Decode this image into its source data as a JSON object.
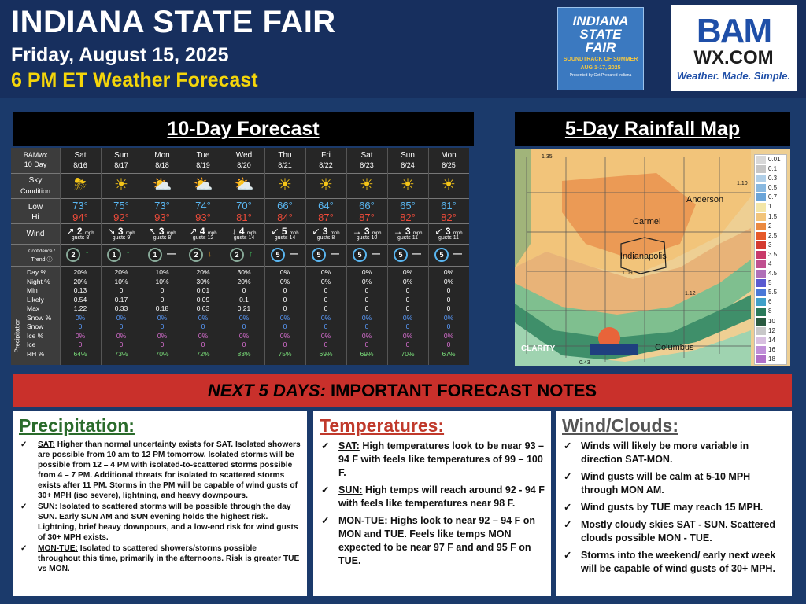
{
  "header": {
    "title": "INDIANA STATE FAIR",
    "date": "Friday, August 15, 2025",
    "subtitle": "6 PM ET Weather Forecast"
  },
  "fair_logo": {
    "line1": "INDIANA",
    "line2": "STATE",
    "line3": "FAIR",
    "tagline": "SOUNDTRACK OF SUMMER",
    "dates": "AUG 1-17, 2025",
    "presented": "Presented by Get Prepared Indiana"
  },
  "bam_logo": {
    "word1": "BAM",
    "word2": "WX.COM",
    "tag_a": "Weather.",
    "tag_b": "Made.",
    "tag_c": "Simple."
  },
  "forecast": {
    "title": "10-Day Forecast",
    "corner_label_1": "BAMwx",
    "corner_label_2": "10 Day",
    "row_labels": {
      "sky": "Sky",
      "sky2": "Condition",
      "low": "Low",
      "hi": "Hi",
      "wind": "Wind",
      "conf": "Confidence /",
      "trend": "Trend ⓘ",
      "precip": "Precipitation"
    },
    "precip_row_labels": [
      "Day %",
      "Night %",
      "Min",
      "Likely",
      "Max",
      "Snow %",
      "Snow",
      "Ice %",
      "Ice",
      "RH %"
    ],
    "days": [
      {
        "day": "Sat",
        "date": "8/16",
        "icon": "thunderstorm-icon",
        "low": "73°",
        "hi": "94°",
        "wind_dir": "↗",
        "wind": "2",
        "gusts": "gusts 8",
        "conf": "2",
        "trend": "↑",
        "trend_color": "#3fbf5c",
        "precip": [
          "20%",
          "20%",
          "0.13",
          "0.54",
          "1.22",
          "0%",
          "0",
          "0%",
          "0",
          "64%"
        ]
      },
      {
        "day": "Sun",
        "date": "8/17",
        "icon": "sunny-icon",
        "low": "75°",
        "hi": "92°",
        "wind_dir": "↘",
        "wind": "3",
        "gusts": "gusts 9",
        "conf": "1",
        "trend": "↑",
        "trend_color": "#3fbf5c",
        "precip": [
          "20%",
          "10%",
          "0",
          "0.17",
          "0.33",
          "0%",
          "0",
          "0%",
          "0",
          "73%"
        ]
      },
      {
        "day": "Mon",
        "date": "8/18",
        "icon": "partly-sunny-icon",
        "low": "73°",
        "hi": "93°",
        "wind_dir": "↖",
        "wind": "3",
        "gusts": "gusts 8",
        "conf": "1",
        "trend": "—",
        "trend_color": "#ffffff",
        "precip": [
          "10%",
          "10%",
          "0",
          "0",
          "0.18",
          "0%",
          "0",
          "0%",
          "0",
          "70%"
        ]
      },
      {
        "day": "Tue",
        "date": "8/19",
        "icon": "partly-sunny-icon",
        "low": "74°",
        "hi": "93°",
        "wind_dir": "↗",
        "wind": "4",
        "gusts": "gusts 12",
        "conf": "2",
        "trend": "↓",
        "trend_color": "#f0a020",
        "precip": [
          "20%",
          "30%",
          "0.01",
          "0.09",
          "0.63",
          "0%",
          "0",
          "0%",
          "0",
          "72%"
        ]
      },
      {
        "day": "Wed",
        "date": "8/20",
        "icon": "partly-cloudy-icon",
        "low": "70°",
        "hi": "81°",
        "wind_dir": "↓",
        "wind": "4",
        "gusts": "gusts 14",
        "conf": "2",
        "trend": "↑",
        "trend_color": "#3fbf5c",
        "precip": [
          "30%",
          "20%",
          "0",
          "0.1",
          "0.21",
          "0%",
          "0",
          "0%",
          "0",
          "83%"
        ]
      },
      {
        "day": "Thu",
        "date": "8/21",
        "icon": "sunny-icon",
        "low": "66°",
        "hi": "84°",
        "wind_dir": "↙",
        "wind": "5",
        "gusts": "gusts 14",
        "conf": "5",
        "trend": "—",
        "trend_color": "#ffffff",
        "precip": [
          "0%",
          "0%",
          "0",
          "0",
          "0",
          "0%",
          "0",
          "0%",
          "0",
          "75%"
        ]
      },
      {
        "day": "Fri",
        "date": "8/22",
        "icon": "sunny-icon",
        "low": "64°",
        "hi": "87°",
        "wind_dir": "↙",
        "wind": "3",
        "gusts": "gusts 8",
        "conf": "5",
        "trend": "—",
        "trend_color": "#ffffff",
        "precip": [
          "0%",
          "0%",
          "0",
          "0",
          "0",
          "0%",
          "0",
          "0%",
          "0",
          "69%"
        ]
      },
      {
        "day": "Sat",
        "date": "8/23",
        "icon": "sunny-icon",
        "low": "66°",
        "hi": "87°",
        "wind_dir": "→",
        "wind": "3",
        "gusts": "gusts 10",
        "conf": "5",
        "trend": "—",
        "trend_color": "#ffffff",
        "precip": [
          "0%",
          "0%",
          "0",
          "0",
          "0",
          "0%",
          "0",
          "0%",
          "0",
          "69%"
        ]
      },
      {
        "day": "Sun",
        "date": "8/24",
        "icon": "sunny-icon",
        "low": "65°",
        "hi": "82°",
        "wind_dir": "→",
        "wind": "3",
        "gusts": "gusts 11",
        "conf": "5",
        "trend": "—",
        "trend_color": "#ffffff",
        "precip": [
          "0%",
          "0%",
          "0",
          "0",
          "0",
          "0%",
          "0",
          "0%",
          "0",
          "70%"
        ]
      },
      {
        "day": "Mon",
        "date": "8/25",
        "icon": "sunny-icon",
        "low": "61°",
        "hi": "82°",
        "wind_dir": "↙",
        "wind": "3",
        "gusts": "gusts 11",
        "conf": "5",
        "trend": "—",
        "trend_color": "#ffffff",
        "precip": [
          "0%",
          "0%",
          "0",
          "0",
          "0",
          "0%",
          "0",
          "0%",
          "0",
          "67%"
        ]
      }
    ],
    "mph": "mph"
  },
  "rainfall_map": {
    "title": "5-Day Rainfall Map",
    "cities": [
      "Anderson",
      "Carmel",
      "Indianapolis",
      "Columbus"
    ],
    "values": [
      "1.35",
      "1.10",
      "1.09",
      "1.12",
      "0.43"
    ],
    "brand": "CLARITY",
    "legend": [
      "0.01",
      "0.1",
      "0.3",
      "0.5",
      "0.7",
      "1",
      "1.5",
      "2",
      "2.5",
      "3",
      "3.5",
      "4",
      "4.5",
      "5",
      "5.5",
      "6",
      "8",
      "10",
      "12",
      "14",
      "16",
      "18"
    ],
    "legend_colors": [
      "#d8d8d8",
      "#c6c6c6",
      "#b0cfe8",
      "#88b8e0",
      "#6aa4d8",
      "#f3e6a8",
      "#f2c47a",
      "#eb8a40",
      "#e65a2a",
      "#d43a30",
      "#c83a6a",
      "#c05090",
      "#b070b8",
      "#5a5ad0",
      "#4a78d8",
      "#40a0c8",
      "#2a7a5a",
      "#2a5a40",
      "#c8c8c8",
      "#d8c0e0",
      "#c090d8",
      "#b070c8"
    ]
  },
  "notes": {
    "banner_a": "NEXT 5 DAYS:",
    "banner_b": " IMPORTANT FORECAST NOTES",
    "precip_title": "Precipitation:",
    "precip_items": [
      {
        "label": "SAT:",
        "text": " Higher than normal uncertainty exists for SAT.  Isolated showers are possible from 10 am to 12 PM tomorrow.  Isolated storms will be possible from 12 – 4 PM with isolated-to-scattered storms possible from 4 – 7 PM.  Additional threats for isolated to scattered storms exists after 11 PM.  Storms in the PM will be capable of wind gusts of 30+ MPH (iso severe), lightning, and heavy downpours."
      },
      {
        "label": "SUN:",
        "text": " Isolated to scattered storms will be possible through the day SUN.  Early SUN AM and SUN evening holds the highest risk. Lightning, brief heavy downpours, and a low-end risk for wind gusts of 30+ MPH exists."
      },
      {
        "label": "MON-TUE:",
        "text": " Isolated to scattered showers/storms possible throughout this time, primarily in the afternoons.  Risk is greater TUE vs MON."
      }
    ],
    "temp_title": "Temperatures:",
    "temp_items": [
      {
        "label": "SAT:",
        "text": " High temperatures look to be near 93 – 94 F with feels like temperatures of 99 – 100 F."
      },
      {
        "label": "SUN:",
        "text": " High temps will reach around 92 - 94 F with feels like temperatures near 98 F."
      },
      {
        "label": "MON-TUE:",
        "text": " Highs look to near 92 – 94 F on MON and TUE.  Feels like temps MON expected to be near 97 F and and 95 F on TUE."
      }
    ],
    "wind_title": "Wind/Clouds:",
    "wind_items": [
      "Winds will likely be more variable in direction SAT-MON.",
      "Wind gusts will be calm at 5-10 MPH through MON AM.",
      "Wind gusts by TUE may reach 15 MPH.",
      "Mostly cloudy skies SAT - SUN. Scattered clouds possible MON - TUE.",
      "Storms into the weekend/ early next week will be capable of wind gusts of 30+ MPH."
    ]
  }
}
